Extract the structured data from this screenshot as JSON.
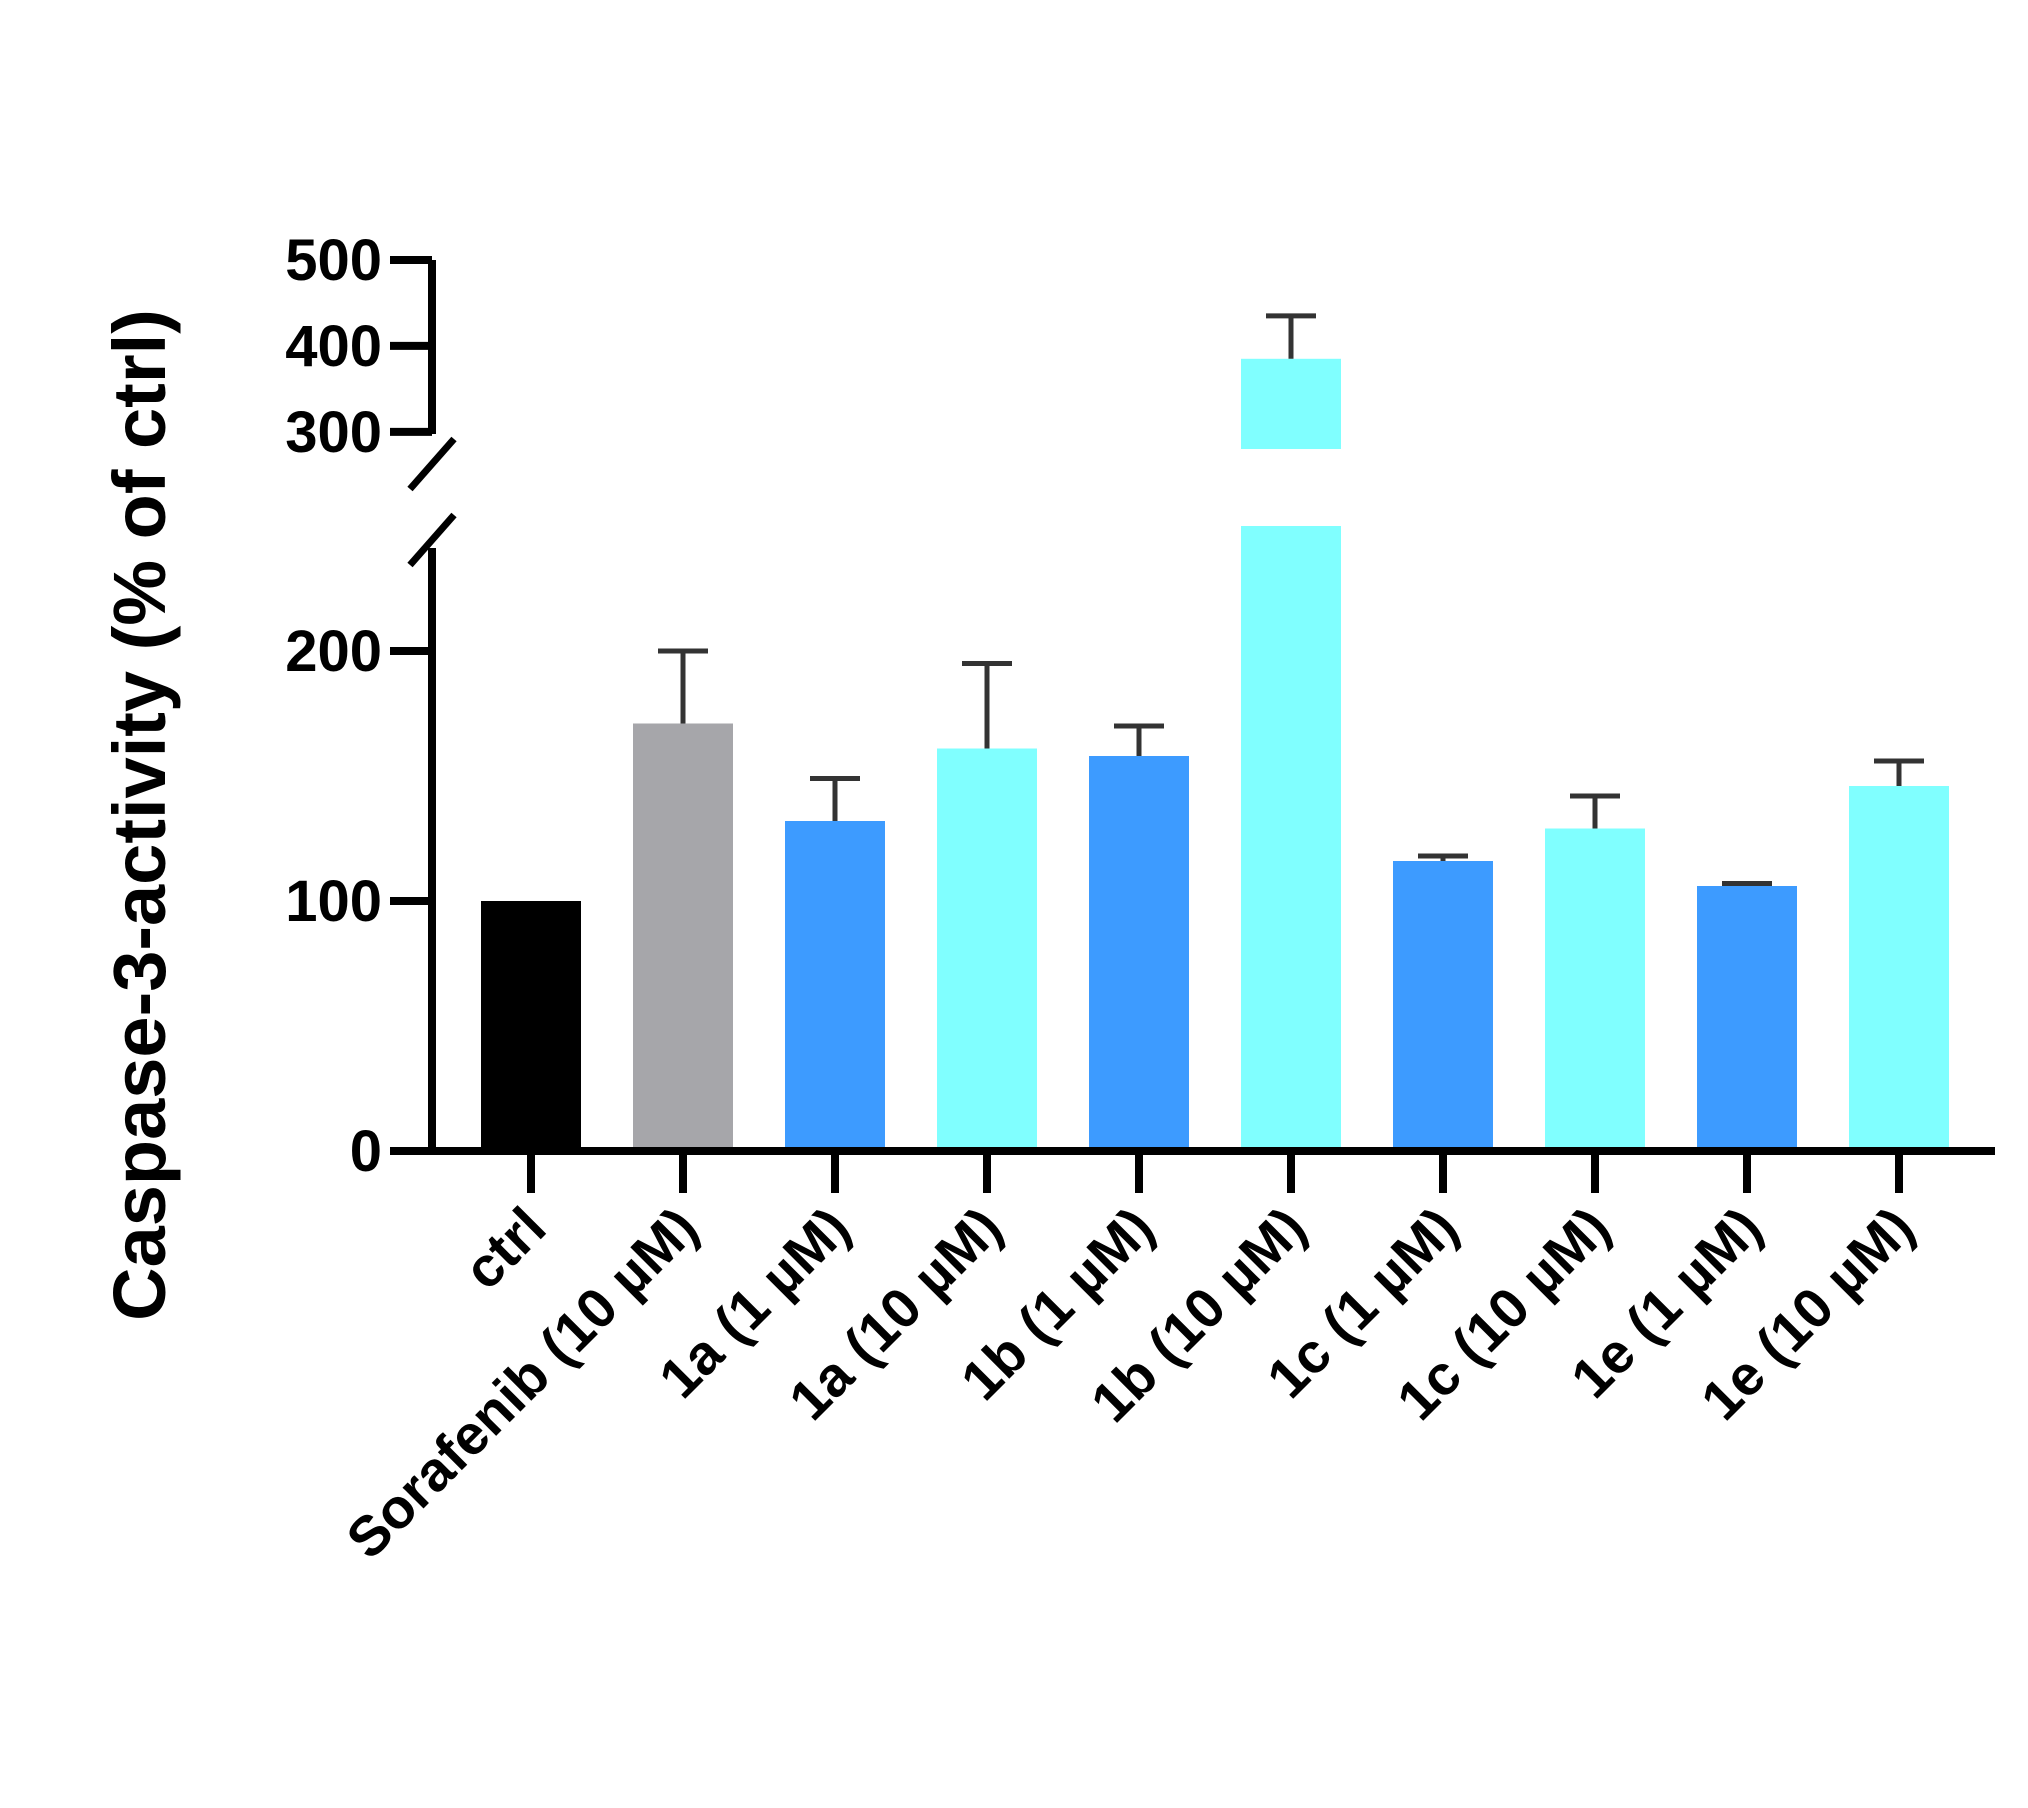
{
  "chart_data": {
    "type": "bar",
    "title": "",
    "xlabel": "",
    "ylabel": "Caspase-3-activity (% of ctrl)",
    "y_axis_broken": true,
    "lower_segment_range": [
      0,
      250
    ],
    "upper_segment_range": [
      280,
      500
    ],
    "yticks": [
      {
        "value": 0,
        "label": "0"
      },
      {
        "value": 100,
        "label": "100"
      },
      {
        "value": 200,
        "label": "200"
      },
      {
        "value": 300,
        "label": "300"
      },
      {
        "value": 400,
        "label": "400"
      },
      {
        "value": 500,
        "label": "500"
      }
    ],
    "categories": [
      "ctrl",
      "Sorafenib (10 µM)",
      "1a (1 µM)",
      "1a (10 µM)",
      "1b (1 µM)",
      "1b (10 µM)",
      "1c (1 µM)",
      "1c (10 µM)",
      "1e (1 µM)",
      "1e (10 µM)"
    ],
    "values": [
      100,
      171,
      132,
      161,
      158,
      385,
      116,
      129,
      106,
      146
    ],
    "errors": [
      0,
      29,
      17,
      34,
      12,
      50,
      2,
      13,
      1,
      10
    ],
    "colors": [
      "#000000",
      "#a6a6aa",
      "#3d9bff",
      "#80ffff",
      "#3d9bff",
      "#80ffff",
      "#3d9bff",
      "#80ffff",
      "#3d9bff",
      "#80ffff"
    ],
    "grid": false,
    "legend": "none"
  }
}
